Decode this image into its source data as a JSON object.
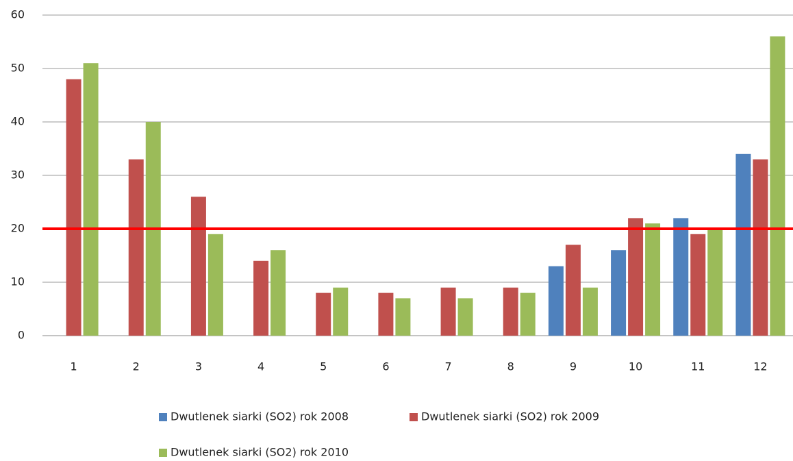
{
  "chart_data": {
    "type": "bar",
    "categories": [
      "1",
      "2",
      "3",
      "4",
      "5",
      "6",
      "7",
      "8",
      "9",
      "10",
      "11",
      "12"
    ],
    "series": [
      {
        "name": "Dwutlenek siarki (SO2) rok 2008",
        "color": "#4f81bd",
        "values": [
          null,
          null,
          null,
          null,
          null,
          null,
          null,
          null,
          13,
          16,
          22,
          34
        ]
      },
      {
        "name": "Dwutlenek siarki (SO2) rok 2009",
        "color": "#c0504d",
        "values": [
          48,
          33,
          26,
          14,
          8,
          8,
          9,
          9,
          17,
          22,
          19,
          33
        ]
      },
      {
        "name": "Dwutlenek siarki (SO2) rok 2010",
        "color": "#9bbb59",
        "values": [
          51,
          40,
          19,
          16,
          9,
          7,
          7,
          8,
          9,
          21,
          20,
          56
        ]
      }
    ],
    "ylim": [
      0,
      60
    ],
    "yticks": [
      0,
      10,
      20,
      30,
      40,
      50,
      60
    ],
    "grid": true,
    "reference_line": {
      "value": 20,
      "color": "#ff0000"
    },
    "legend": "bottom"
  }
}
